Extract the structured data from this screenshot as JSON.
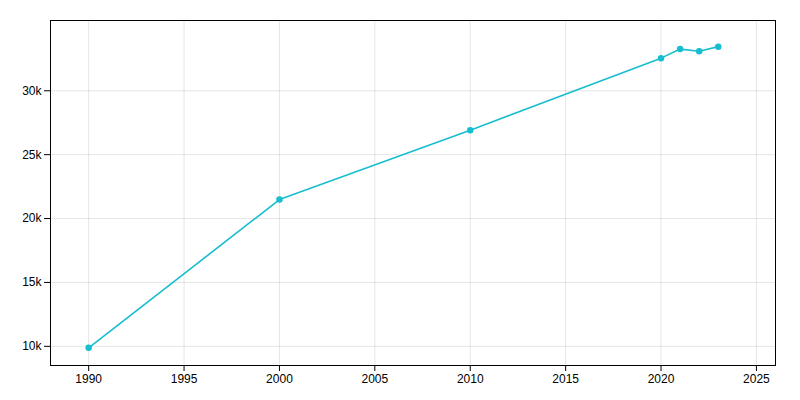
{
  "chart_data": {
    "type": "line",
    "x": [
      1990,
      2000,
      2010,
      2020,
      2021,
      2022,
      2023
    ],
    "values": [
      9882,
      21482,
      26911,
      32554,
      33262,
      33098,
      33454
    ],
    "color": "#17becf",
    "marker": "circle",
    "xlim": [
      1988,
      2026
    ],
    "xticks": [
      1990,
      1995,
      2000,
      2005,
      2010,
      2015,
      2020,
      2025
    ],
    "ylim": [
      8500,
      35500
    ],
    "yticks": [
      {
        "value": 10000,
        "label": "10k"
      },
      {
        "value": 15000,
        "label": "15k"
      },
      {
        "value": 20000,
        "label": "20k"
      },
      {
        "value": 25000,
        "label": "25k"
      },
      {
        "value": 30000,
        "label": "30k"
      }
    ],
    "grid": true
  }
}
